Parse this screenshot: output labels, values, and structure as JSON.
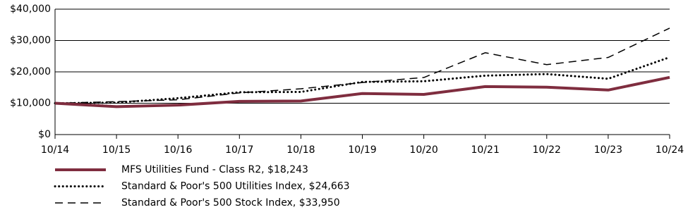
{
  "chart_data": {
    "type": "line",
    "categories": [
      "10/14",
      "10/15",
      "10/16",
      "10/17",
      "10/18",
      "10/19",
      "10/20",
      "10/21",
      "10/22",
      "10/23",
      "10/24"
    ],
    "series": [
      {
        "name": "MFS Utilities Fund - Class R2, $18,243",
        "color": "#7f2d3f",
        "line_style": "solid",
        "values": [
          10000,
          8900,
          9400,
          10600,
          10700,
          13100,
          12800,
          15300,
          15100,
          14200,
          18243
        ]
      },
      {
        "name": "Standard & Poor's 500 Utilities Index, $24,663",
        "color": "#000000",
        "line_style": "dotted",
        "values": [
          10000,
          10200,
          11600,
          13500,
          13600,
          16800,
          17000,
          18800,
          19300,
          17800,
          24663
        ]
      },
      {
        "name": "Standard & Poor's 500 Stock Index, $33,950",
        "color": "#000000",
        "line_style": "dashed",
        "values": [
          10000,
          10500,
          11100,
          13300,
          14600,
          16600,
          18200,
          26100,
          22300,
          24600,
          33950
        ]
      }
    ],
    "ylim": [
      0,
      40000
    ],
    "yticks": [
      {
        "value": 0,
        "label": "$0"
      },
      {
        "value": 10000,
        "label": "$10,000"
      },
      {
        "value": 20000,
        "label": "$20,000"
      },
      {
        "value": 30000,
        "label": "$30,000"
      },
      {
        "value": 40000,
        "label": "$40,000"
      }
    ],
    "grid": true
  }
}
